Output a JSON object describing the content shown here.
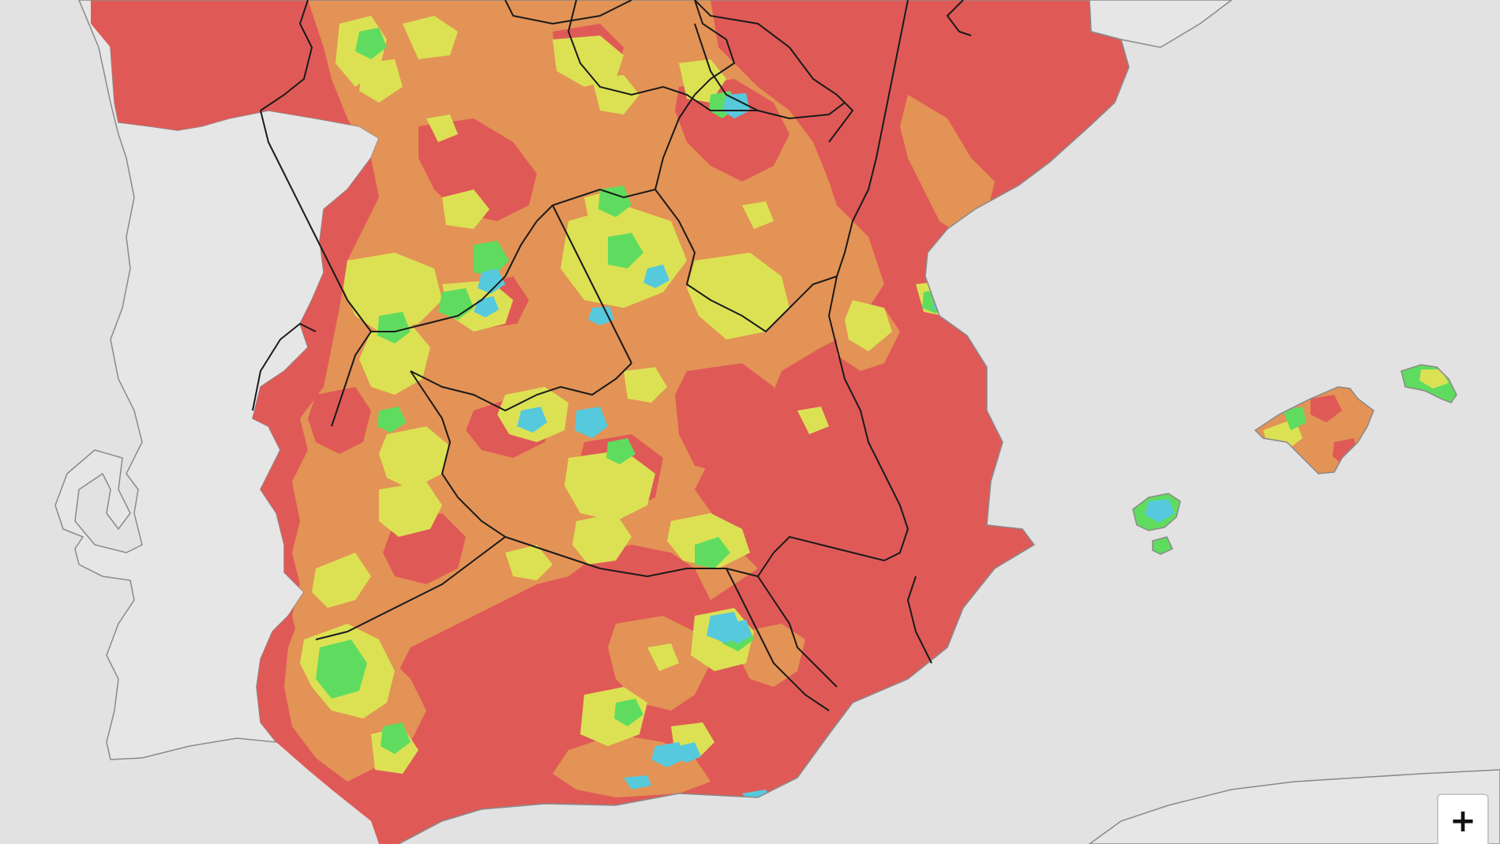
{
  "colors": {
    "sea": "#e2e2e2",
    "neighbour_land": "#e6e6e6",
    "coastline": "#8a8a8a",
    "region_border": "#1a1a1a",
    "very_high": "#df5a57",
    "high": "#e39355",
    "moderate": "#dce154",
    "low": "#5fdc5f",
    "very_low": "#56c9dd"
  },
  "icons": {
    "zoom_in": "plus-icon"
  },
  "zoom_control": {
    "zoom_in_symbol": "+"
  }
}
